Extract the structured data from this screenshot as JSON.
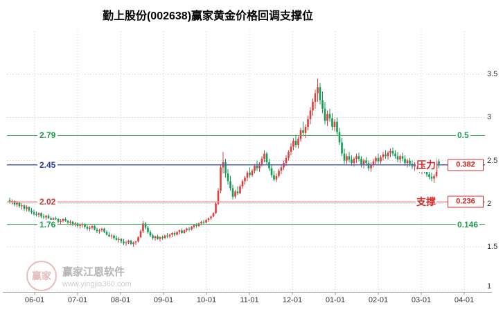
{
  "chart_data": {
    "type": "candlestick",
    "title": "勤上股份(002638)赢家黄金价格回调支撑位",
    "ylim": [
      1,
      4
    ],
    "y_ticks": [
      3.5,
      3,
      2.5,
      2,
      1.5,
      1
    ],
    "x_ticks": [
      "06-01",
      "07-01",
      "08-01",
      "09-01",
      "10-01",
      "11-01",
      "12-01",
      "01-01",
      "02-01",
      "03-01",
      "04-01"
    ],
    "grid": true,
    "colors": {
      "up": "#e23b3b",
      "down": "#0f9e52",
      "grid": "#d9d9d9",
      "axis_text": "#333333",
      "axis_line": "#999999"
    },
    "levels": [
      {
        "price": 2.79,
        "left_label": "2.79",
        "right_label": "0.5",
        "line_color": "#3fae58",
        "left_color": "#1e9e4e",
        "right_color": "#1e9e4e",
        "boxed": false
      },
      {
        "price": 2.45,
        "left_label": "2.45",
        "right_label": "0.382",
        "line_color": "#4a5ec4",
        "left_color": "#2b3f9e",
        "right_color": "#cc2222",
        "boxed": true,
        "tag": "压力"
      },
      {
        "price": 2.02,
        "left_label": "2.02",
        "right_label": "0.236",
        "line_color": "#ef9090",
        "left_color": "#d43030",
        "right_color": "#cc2222",
        "boxed": true,
        "tag": "支撑"
      },
      {
        "price": 1.76,
        "left_label": "1.76",
        "right_label": "0.146",
        "line_color": "#3fae58",
        "left_color": "#1e9e4e",
        "right_color": "#1e9e4e",
        "boxed": false
      }
    ],
    "candles": [
      [
        2.04,
        2.07,
        2.0,
        2.02
      ],
      [
        2.02,
        2.05,
        1.99,
        2.03
      ],
      [
        2.03,
        2.04,
        1.97,
        1.99
      ],
      [
        1.99,
        2.03,
        1.96,
        2.01
      ],
      [
        2.01,
        2.02,
        1.95,
        1.97
      ],
      [
        1.97,
        2.0,
        1.93,
        1.98
      ],
      [
        1.98,
        1.99,
        1.92,
        1.94
      ],
      [
        1.94,
        1.98,
        1.91,
        1.96
      ],
      [
        1.96,
        1.97,
        1.9,
        1.92
      ],
      [
        1.92,
        1.95,
        1.88,
        1.9
      ],
      [
        1.9,
        1.93,
        1.86,
        1.88
      ],
      [
        1.88,
        1.91,
        1.85,
        1.87
      ],
      [
        1.87,
        1.9,
        1.84,
        1.89
      ],
      [
        1.89,
        1.9,
        1.83,
        1.85
      ],
      [
        1.85,
        1.88,
        1.82,
        1.84
      ],
      [
        1.84,
        1.87,
        1.81,
        1.86
      ],
      [
        1.86,
        1.88,
        1.82,
        1.83
      ],
      [
        1.83,
        1.85,
        1.79,
        1.81
      ],
      [
        1.81,
        1.84,
        1.78,
        1.83
      ],
      [
        1.83,
        1.85,
        1.8,
        1.82
      ],
      [
        1.82,
        1.83,
        1.77,
        1.79
      ],
      [
        1.79,
        1.82,
        1.76,
        1.8
      ],
      [
        1.8,
        1.83,
        1.78,
        1.82
      ],
      [
        1.82,
        1.84,
        1.79,
        1.8
      ],
      [
        1.8,
        1.81,
        1.76,
        1.78
      ],
      [
        1.78,
        1.81,
        1.75,
        1.79
      ],
      [
        1.79,
        1.8,
        1.74,
        1.76
      ],
      [
        1.76,
        1.79,
        1.73,
        1.77
      ],
      [
        1.77,
        1.78,
        1.72,
        1.74
      ],
      [
        1.74,
        1.77,
        1.71,
        1.75
      ],
      [
        1.75,
        1.78,
        1.72,
        1.76
      ],
      [
        1.76,
        1.77,
        1.71,
        1.73
      ],
      [
        1.73,
        1.75,
        1.69,
        1.71
      ],
      [
        1.71,
        1.74,
        1.68,
        1.72
      ],
      [
        1.72,
        1.75,
        1.7,
        1.74
      ],
      [
        1.74,
        1.75,
        1.69,
        1.7
      ],
      [
        1.7,
        1.72,
        1.66,
        1.68
      ],
      [
        1.68,
        1.71,
        1.65,
        1.69
      ],
      [
        1.69,
        1.72,
        1.67,
        1.71
      ],
      [
        1.71,
        1.72,
        1.66,
        1.67
      ],
      [
        1.67,
        1.69,
        1.63,
        1.64
      ],
      [
        1.64,
        1.67,
        1.61,
        1.62
      ],
      [
        1.62,
        1.65,
        1.59,
        1.63
      ],
      [
        1.63,
        1.64,
        1.58,
        1.6
      ],
      [
        1.6,
        1.63,
        1.57,
        1.58
      ],
      [
        1.58,
        1.61,
        1.55,
        1.59
      ],
      [
        1.59,
        1.6,
        1.54,
        1.56
      ],
      [
        1.56,
        1.59,
        1.52,
        1.54
      ],
      [
        1.54,
        1.57,
        1.51,
        1.55
      ],
      [
        1.55,
        1.58,
        1.53,
        1.57
      ],
      [
        1.57,
        1.58,
        1.52,
        1.53
      ],
      [
        1.53,
        1.56,
        1.5,
        1.55
      ],
      [
        1.55,
        1.57,
        1.52,
        1.56
      ],
      [
        1.56,
        1.62,
        1.55,
        1.61
      ],
      [
        1.61,
        1.7,
        1.6,
        1.68
      ],
      [
        1.68,
        1.8,
        1.66,
        1.77
      ],
      [
        1.77,
        1.79,
        1.7,
        1.72
      ],
      [
        1.72,
        1.74,
        1.65,
        1.67
      ],
      [
        1.67,
        1.69,
        1.61,
        1.63
      ],
      [
        1.63,
        1.65,
        1.58,
        1.6
      ],
      [
        1.6,
        1.63,
        1.57,
        1.62
      ],
      [
        1.62,
        1.64,
        1.58,
        1.59
      ],
      [
        1.59,
        1.62,
        1.56,
        1.61
      ],
      [
        1.61,
        1.63,
        1.58,
        1.6
      ],
      [
        1.6,
        1.64,
        1.59,
        1.63
      ],
      [
        1.63,
        1.66,
        1.6,
        1.62
      ],
      [
        1.62,
        1.65,
        1.6,
        1.64
      ],
      [
        1.64,
        1.67,
        1.61,
        1.66
      ],
      [
        1.66,
        1.68,
        1.62,
        1.64
      ],
      [
        1.64,
        1.68,
        1.63,
        1.67
      ],
      [
        1.67,
        1.7,
        1.64,
        1.69
      ],
      [
        1.69,
        1.71,
        1.65,
        1.66
      ],
      [
        1.66,
        1.7,
        1.65,
        1.69
      ],
      [
        1.69,
        1.72,
        1.67,
        1.71
      ],
      [
        1.71,
        1.73,
        1.68,
        1.7
      ],
      [
        1.7,
        1.74,
        1.69,
        1.73
      ],
      [
        1.73,
        1.76,
        1.71,
        1.75
      ],
      [
        1.75,
        1.77,
        1.72,
        1.74
      ],
      [
        1.74,
        1.78,
        1.73,
        1.77
      ],
      [
        1.77,
        1.8,
        1.75,
        1.79
      ],
      [
        1.79,
        1.81,
        1.76,
        1.78
      ],
      [
        1.78,
        1.82,
        1.77,
        1.81
      ],
      [
        1.81,
        1.84,
        1.79,
        1.83
      ],
      [
        1.83,
        1.86,
        1.81,
        1.85
      ],
      [
        1.85,
        1.9,
        1.84,
        1.89
      ],
      [
        1.89,
        2.02,
        1.88,
        2.0
      ],
      [
        2.0,
        2.18,
        1.98,
        2.15
      ],
      [
        2.15,
        2.45,
        2.12,
        2.42
      ],
      [
        2.42,
        2.6,
        2.35,
        2.48
      ],
      [
        2.48,
        2.52,
        2.3,
        2.35
      ],
      [
        2.35,
        2.4,
        2.22,
        2.26
      ],
      [
        2.26,
        2.32,
        2.15,
        2.18
      ],
      [
        2.18,
        2.22,
        2.05,
        2.08
      ],
      [
        2.08,
        2.16,
        2.06,
        2.14
      ],
      [
        2.14,
        2.2,
        2.1,
        2.12
      ],
      [
        2.12,
        2.22,
        2.11,
        2.2
      ],
      [
        2.2,
        2.28,
        2.17,
        2.26
      ],
      [
        2.26,
        2.32,
        2.22,
        2.3
      ],
      [
        2.3,
        2.38,
        2.26,
        2.36
      ],
      [
        2.36,
        2.42,
        2.3,
        2.33
      ],
      [
        2.33,
        2.4,
        2.31,
        2.38
      ],
      [
        2.38,
        2.46,
        2.35,
        2.44
      ],
      [
        2.44,
        2.5,
        2.38,
        2.41
      ],
      [
        2.41,
        2.48,
        2.37,
        2.46
      ],
      [
        2.46,
        2.55,
        2.43,
        2.52
      ],
      [
        2.52,
        2.62,
        2.48,
        2.58
      ],
      [
        2.58,
        2.6,
        2.45,
        2.48
      ],
      [
        2.48,
        2.52,
        2.38,
        2.41
      ],
      [
        2.41,
        2.45,
        2.3,
        2.33
      ],
      [
        2.33,
        2.38,
        2.26,
        2.28
      ],
      [
        2.28,
        2.35,
        2.25,
        2.32
      ],
      [
        2.32,
        2.4,
        2.3,
        2.38
      ],
      [
        2.38,
        2.45,
        2.34,
        2.42
      ],
      [
        2.42,
        2.5,
        2.39,
        2.47
      ],
      [
        2.47,
        2.56,
        2.44,
        2.53
      ],
      [
        2.53,
        2.62,
        2.5,
        2.6
      ],
      [
        2.6,
        2.7,
        2.56,
        2.66
      ],
      [
        2.66,
        2.76,
        2.62,
        2.73
      ],
      [
        2.73,
        2.8,
        2.65,
        2.68
      ],
      [
        2.68,
        2.78,
        2.64,
        2.75
      ],
      [
        2.75,
        2.88,
        2.72,
        2.85
      ],
      [
        2.85,
        2.95,
        2.78,
        2.82
      ],
      [
        2.82,
        2.92,
        2.76,
        2.89
      ],
      [
        2.89,
        3.02,
        2.85,
        2.98
      ],
      [
        2.98,
        3.12,
        2.92,
        3.08
      ],
      [
        3.08,
        3.22,
        3.02,
        3.18
      ],
      [
        3.18,
        3.32,
        3.1,
        3.28
      ],
      [
        3.28,
        3.45,
        3.18,
        3.35
      ],
      [
        3.35,
        3.4,
        3.15,
        3.2
      ],
      [
        3.2,
        3.3,
        3.05,
        3.1
      ],
      [
        3.1,
        3.18,
        2.92,
        2.96
      ],
      [
        2.96,
        3.08,
        2.9,
        3.04
      ],
      [
        3.04,
        3.1,
        2.95,
        2.99
      ],
      [
        2.99,
        3.05,
        2.85,
        2.89
      ],
      [
        2.89,
        2.98,
        2.84,
        2.95
      ],
      [
        2.95,
        3.0,
        2.8,
        2.83
      ],
      [
        2.83,
        2.88,
        2.68,
        2.71
      ],
      [
        2.71,
        2.76,
        2.55,
        2.58
      ],
      [
        2.58,
        2.64,
        2.46,
        2.5
      ],
      [
        2.5,
        2.58,
        2.46,
        2.55
      ],
      [
        2.55,
        2.6,
        2.48,
        2.51
      ],
      [
        2.51,
        2.56,
        2.44,
        2.47
      ],
      [
        2.47,
        2.54,
        2.43,
        2.52
      ],
      [
        2.52,
        2.58,
        2.47,
        2.55
      ],
      [
        2.55,
        2.59,
        2.49,
        2.52
      ],
      [
        2.52,
        2.55,
        2.42,
        2.45
      ],
      [
        2.45,
        2.52,
        2.41,
        2.5
      ],
      [
        2.5,
        2.54,
        2.44,
        2.47
      ],
      [
        2.47,
        2.5,
        2.38,
        2.41
      ],
      [
        2.41,
        2.48,
        2.37,
        2.45
      ],
      [
        2.45,
        2.52,
        2.42,
        2.49
      ],
      [
        2.49,
        2.55,
        2.45,
        2.53
      ],
      [
        2.53,
        2.58,
        2.46,
        2.49
      ],
      [
        2.49,
        2.56,
        2.46,
        2.54
      ],
      [
        2.54,
        2.6,
        2.5,
        2.57
      ],
      [
        2.57,
        2.62,
        2.52,
        2.55
      ],
      [
        2.55,
        2.61,
        2.51,
        2.59
      ],
      [
        2.59,
        2.64,
        2.54,
        2.61
      ],
      [
        2.61,
        2.65,
        2.55,
        2.58
      ],
      [
        2.58,
        2.62,
        2.52,
        2.55
      ],
      [
        2.55,
        2.6,
        2.48,
        2.51
      ],
      [
        2.51,
        2.57,
        2.47,
        2.55
      ],
      [
        2.55,
        2.59,
        2.49,
        2.52
      ],
      [
        2.52,
        2.56,
        2.44,
        2.47
      ],
      [
        2.47,
        2.52,
        2.42,
        2.5
      ],
      [
        2.5,
        2.53,
        2.43,
        2.46
      ],
      [
        2.46,
        2.5,
        2.4,
        2.43
      ],
      [
        2.43,
        2.48,
        2.38,
        2.46
      ],
      [
        2.46,
        2.49,
        2.4,
        2.42
      ],
      [
        2.42,
        2.46,
        2.36,
        2.39
      ],
      [
        2.39,
        2.44,
        2.34,
        2.42
      ],
      [
        2.42,
        2.45,
        2.35,
        2.38
      ],
      [
        2.38,
        2.42,
        2.31,
        2.34
      ],
      [
        2.34,
        2.39,
        2.28,
        2.31
      ],
      [
        2.31,
        2.36,
        2.26,
        2.29
      ],
      [
        2.29,
        2.34,
        2.24,
        2.32
      ],
      [
        2.32,
        2.53,
        2.3,
        2.49
      ],
      [
        2.49,
        2.52,
        2.41,
        2.46
      ]
    ]
  },
  "watermark": {
    "brand": "赢家江恩软件",
    "url": "www.yingjia360.com",
    "logo_text": "赢家"
  }
}
